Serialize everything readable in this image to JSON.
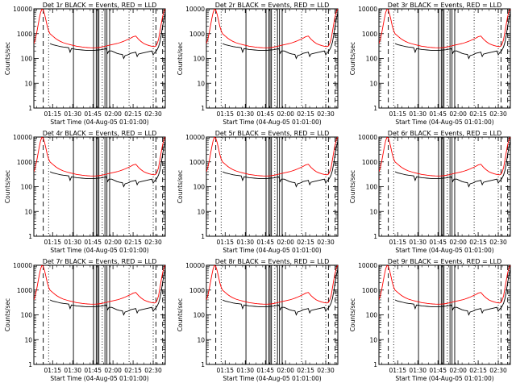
{
  "chart_data": {
    "type": "line",
    "panel_titles": [
      "Det 1r BLACK = Events, RED = LLD",
      "Det 2r BLACK = Events, RED = LLD",
      "Det 3r BLACK = Events, RED = LLD",
      "Det 4r BLACK = Events, RED = LLD",
      "Det 5r BLACK = Events, RED = LLD",
      "Det 6r BLACK = Events, RED = LLD",
      "Det 7r BLACK = Events, RED = LLD",
      "Det 8r BLACK = Events, RED = LLD",
      "Det 9r BLACK = Events, RED = LLD"
    ],
    "xlabel": "Start Time (04-Aug-05 01:01:00)",
    "ylabel": "Counts/sec",
    "yscale": "log",
    "ylim": [
      1,
      10000
    ],
    "xlim_minutes": [
      0,
      98
    ],
    "x_ticks": [
      {
        "minute": 14,
        "label": "01:15"
      },
      {
        "minute": 29,
        "label": "01:30"
      },
      {
        "minute": 44,
        "label": "01:45"
      },
      {
        "minute": 59,
        "label": "02:00"
      },
      {
        "minute": 74,
        "label": "02:15"
      },
      {
        "minute": 89,
        "label": "02:30"
      }
    ],
    "y_ticks": [
      {
        "value": 1,
        "label": "1"
      },
      {
        "value": 10,
        "label": "10"
      },
      {
        "value": 100,
        "label": "100"
      },
      {
        "value": 1000,
        "label": "1000"
      },
      {
        "value": 10000,
        "label": "10000"
      }
    ],
    "series": [
      {
        "color": "#ff0000",
        "x": [
          0,
          1,
          2,
          3,
          4,
          5,
          6,
          7,
          8,
          9,
          10,
          11,
          12,
          14,
          16,
          18,
          20,
          22,
          24,
          26,
          28,
          30,
          32,
          34,
          36,
          38,
          40,
          42,
          44,
          46,
          48,
          50,
          52,
          54,
          56,
          58,
          60,
          62,
          64,
          66,
          68,
          70,
          72,
          74,
          76,
          78,
          80,
          82,
          84,
          86,
          88,
          90,
          91,
          92,
          93,
          94,
          95,
          96,
          97,
          98
        ],
        "y": [
          400,
          600,
          1000,
          2000,
          4000,
          7000,
          10000,
          9000,
          6000,
          3500,
          2000,
          1300,
          1000,
          800,
          650,
          550,
          480,
          430,
          400,
          370,
          350,
          330,
          310,
          300,
          290,
          280,
          275,
          270,
          268,
          270,
          275,
          285,
          300,
          320,
          340,
          360,
          380,
          400,
          430,
          470,
          520,
          580,
          650,
          750,
          800,
          600,
          480,
          400,
          360,
          330,
          310,
          300,
          320,
          400,
          600,
          1200,
          2500,
          5000,
          8000,
          10000
        ]
      },
      {
        "color": "#000000",
        "x": [
          12,
          14,
          16,
          18,
          20,
          22,
          24,
          26,
          27,
          28,
          30,
          32,
          34,
          36,
          38,
          40,
          42,
          44,
          46,
          48,
          50,
          52,
          54,
          55,
          56,
          58,
          60,
          62,
          64,
          66,
          67,
          68,
          70,
          72,
          74,
          76,
          77,
          78,
          80,
          82,
          84,
          86,
          88,
          89,
          90,
          91,
          92,
          93,
          94,
          95,
          96,
          97,
          98
        ],
        "y": [
          400,
          360,
          340,
          320,
          300,
          290,
          280,
          270,
          180,
          250,
          240,
          230,
          225,
          220,
          215,
          210,
          210,
          210,
          215,
          220,
          225,
          235,
          250,
          160,
          200,
          200,
          180,
          160,
          150,
          145,
          100,
          130,
          140,
          160,
          170,
          180,
          120,
          150,
          160,
          170,
          180,
          190,
          200,
          140,
          170,
          190,
          230,
          300,
          450,
          900,
          2000,
          4000,
          7000
        ]
      }
    ],
    "gaps_minutes": [
      29.5,
      44.5,
      46.5,
      47.5,
      48.5,
      53,
      54.5,
      56.5
    ],
    "dashed_markers_minutes": [
      7,
      91,
      96
    ],
    "dotted_markers_minutes": [
      11,
      51,
      71,
      89
    ]
  }
}
